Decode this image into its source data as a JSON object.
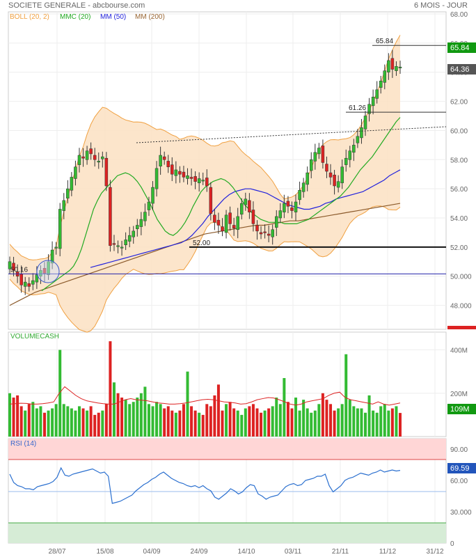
{
  "header": {
    "title": "SOCIETE GENERALE - abcbourse.com",
    "period": "6 MOIS - JOUR"
  },
  "legend": [
    {
      "label": "BOLL (20, 2)",
      "color": "#f0a040"
    },
    {
      "label": "MMC (20)",
      "color": "#22aa22"
    },
    {
      "label": "MM (50)",
      "color": "#2222dd"
    },
    {
      "label": "MM (200)",
      "color": "#996633"
    }
  ],
  "colors": {
    "up": "#33bb33",
    "down": "#dd2222",
    "boll_fill": "#fbe0c2",
    "boll_line": "#f0a040",
    "mmc20": "#22aa22",
    "mm50": "#2222dd",
    "mm200": "#8b5a2b",
    "volume_ma": "#dd2222",
    "rsi_line": "#2a6fcf"
  },
  "chart_data": [
    {
      "type": "candlestick",
      "title": "",
      "y_ticks": [
        "48.000",
        "50.000",
        "52.00",
        "54.00",
        "56.00",
        "58.00",
        "60.00",
        "62.00",
        "64.00",
        "66.00",
        "68.00"
      ],
      "ylim": [
        46.5,
        68
      ],
      "x_ticks": [
        "28/07",
        "15/08",
        "04/09",
        "24/09",
        "14/10",
        "03/11",
        "21/11",
        "11/12",
        "31/12"
      ],
      "price_labels": {
        "high": "65.84",
        "last": "64.36"
      },
      "annotations": [
        "65.84",
        "61.26",
        "52.00",
        "50.16"
      ],
      "horizontal_lines": [
        {
          "value": 65.84,
          "label": "65.84"
        },
        {
          "value": 61.26,
          "label": "61.26"
        },
        {
          "value": 52.0,
          "label": "52.00"
        },
        {
          "value": 50.16,
          "label": "50.16"
        }
      ],
      "trendline": {
        "from": [
          16,
          59.0
        ],
        "to": [
          98,
          60.3
        ]
      },
      "close": [
        51.0,
        50.4,
        50.0,
        49.4,
        49.6,
        49.3,
        49.7,
        50.1,
        50.4,
        50.2,
        51.0,
        51.8,
        52.0,
        54.6,
        55.2,
        56.0,
        56.8,
        57.5,
        58.3,
        58.1,
        58.6,
        58.4,
        58.0,
        57.9,
        58.2,
        56.2,
        52.1,
        52.2,
        52.1,
        52.0,
        52.5,
        52.8,
        53.1,
        53.5,
        53.9,
        54.4,
        55.1,
        56.1,
        57.4,
        58.3,
        58.0,
        57.5,
        57.0,
        57.3,
        57.0,
        56.8,
        56.9,
        56.7,
        56.5,
        56.7,
        56.6,
        56.2,
        54.3,
        53.7,
        53.5,
        53.1,
        54.2,
        53.6,
        53.3,
        54.1,
        55.0,
        55.3,
        54.4,
        53.6,
        53.1,
        52.9,
        53.0,
        52.8,
        53.2,
        54.1,
        54.5,
        55.0,
        54.8,
        54.5,
        55.1,
        55.9,
        56.4,
        57.1,
        58.0,
        58.5,
        58.8,
        57.8,
        57.2,
        56.8,
        56.2,
        56.5,
        57.5,
        58.1,
        58.6,
        59.0,
        59.6,
        60.2,
        61.0,
        61.8,
        62.3,
        62.8,
        63.4,
        64.1,
        64.8,
        64.2,
        64.4,
        64.36
      ],
      "mmc20": [
        49.0,
        49.2,
        49.4,
        49.6,
        49.8,
        50.0,
        50.2,
        50.4,
        50.7,
        51.2,
        51.9,
        52.8,
        53.7,
        54.6,
        55.2,
        55.7,
        56.0,
        56.3,
        56.6,
        56.9,
        57.0,
        57.1,
        57.0,
        56.8,
        56.5,
        56.1,
        55.6,
        55.1,
        54.5,
        53.9,
        53.5,
        53.1,
        52.9,
        52.8,
        53.0,
        53.3,
        53.7,
        54.2,
        54.8,
        55.3,
        55.8,
        56.1,
        56.3,
        56.5,
        56.6,
        56.7,
        56.6,
        56.4,
        56.1,
        55.7,
        55.3,
        54.9,
        54.6,
        54.3,
        54.1,
        53.9,
        53.8,
        53.7,
        53.7,
        53.7,
        53.7,
        53.6,
        53.6,
        53.6,
        53.6,
        53.7,
        53.8,
        53.9,
        54.1,
        54.3,
        54.5,
        54.7,
        54.9,
        55.1,
        55.3,
        55.5,
        55.8,
        56.1,
        56.5,
        56.9,
        57.3,
        57.6,
        57.9,
        58.2,
        58.6,
        59.0,
        59.4,
        59.8,
        60.2,
        60.6,
        60.9
      ],
      "mm50": [
        50.6,
        50.7,
        50.8,
        50.9,
        51.0,
        51.1,
        51.2,
        51.3,
        51.4,
        51.5,
        51.6,
        51.7,
        51.8,
        51.9,
        52.0,
        52.1,
        52.2,
        52.3,
        52.5,
        52.8,
        53.2,
        53.6,
        54.1,
        54.5,
        54.9,
        55.3,
        55.6,
        55.8,
        55.9,
        56.0,
        56.0,
        55.9,
        55.8,
        55.7,
        55.5,
        55.3,
        55.1,
        54.9,
        54.8,
        54.7,
        54.6,
        54.6,
        54.7,
        54.8,
        55.0,
        55.1,
        55.3,
        55.4,
        55.5,
        55.6,
        55.7,
        55.8,
        56.0,
        56.2,
        56.4,
        56.6,
        56.9,
        57.1,
        57.3
      ],
      "mm200": [
        48.0,
        48.3,
        48.6,
        48.9,
        49.1,
        49.3,
        49.5,
        49.7,
        49.9,
        50.1,
        50.3,
        50.5,
        50.7,
        50.9,
        51.1,
        51.3,
        51.5,
        51.7,
        51.9,
        52.1,
        52.3,
        52.5,
        52.7,
        52.9,
        53.0,
        53.1,
        53.2,
        53.3,
        53.4,
        53.5,
        53.5,
        53.6,
        53.7,
        53.8,
        53.8,
        53.9,
        54.0,
        54.1,
        54.2,
        54.3,
        54.4,
        54.5,
        54.6,
        54.7,
        54.8,
        54.9,
        55.0
      ]
    },
    {
      "type": "bar",
      "title": "VOLUMECASH",
      "y_ticks": [
        "200M",
        "400M"
      ],
      "ylim": [
        0,
        450
      ],
      "last_label": "109M",
      "values": [
        200,
        180,
        190,
        140,
        120,
        150,
        160,
        130,
        140,
        110,
        120,
        130,
        150,
        400,
        150,
        140,
        130,
        120,
        140,
        130,
        120,
        140,
        100,
        110,
        120,
        150,
        440,
        250,
        200,
        180,
        170,
        150,
        160,
        180,
        200,
        230,
        150,
        140,
        160,
        150,
        130,
        140,
        120,
        110,
        120,
        150,
        300,
        140,
        120,
        110,
        100,
        150,
        140,
        190,
        240,
        120,
        150,
        160,
        130,
        120,
        100,
        130,
        140,
        150,
        130,
        110,
        120,
        130,
        140,
        180,
        150,
        270,
        160,
        130,
        180,
        120,
        170,
        130,
        110,
        120,
        150,
        200,
        170,
        150,
        120,
        130,
        150,
        380,
        170,
        140,
        130,
        130,
        110,
        190,
        120,
        110,
        140,
        150,
        120,
        130,
        140,
        109
      ],
      "moving_average": [
        150,
        152,
        154,
        153,
        150,
        150,
        152,
        155,
        160,
        200,
        230,
        210,
        190,
        175,
        165,
        160,
        155,
        152,
        150,
        150,
        160,
        170,
        175,
        170,
        168,
        165,
        160,
        155,
        153,
        150,
        150,
        152,
        155,
        160,
        165,
        170,
        172,
        170,
        165,
        160,
        158,
        155,
        150,
        152,
        160,
        170,
        175,
        180,
        178,
        170,
        160,
        150,
        145,
        150,
        160,
        165,
        170,
        175,
        190,
        200,
        205,
        180,
        170,
        165,
        160,
        155,
        150,
        160,
        150,
        145,
        150,
        155
      ],
      "show_top": true
    },
    {
      "type": "line",
      "title": "RSI (14)",
      "y_ticks": [
        "0",
        "30.000",
        "60.00",
        "90.00"
      ],
      "ylim": [
        0,
        100
      ],
      "bands": [
        70,
        30
      ],
      "ref_line": 50,
      "last_label": "69.59",
      "values": [
        66,
        58,
        55,
        54,
        52,
        52,
        51,
        54,
        55,
        56,
        57,
        59,
        63,
        72,
        65,
        64,
        66,
        67,
        68,
        69,
        70,
        71,
        69,
        67,
        68,
        64,
        38,
        39,
        40,
        42,
        44,
        46,
        50,
        53,
        56,
        58,
        61,
        63,
        66,
        68,
        65,
        62,
        60,
        58,
        57,
        55,
        54,
        55,
        53,
        55,
        52,
        50,
        44,
        42,
        45,
        48,
        52,
        50,
        47,
        49,
        53,
        56,
        55,
        47,
        45,
        42,
        44,
        45,
        46,
        50,
        54,
        56,
        57,
        55,
        56,
        60,
        61,
        62,
        64,
        64,
        66,
        55,
        49,
        52,
        55,
        60,
        62,
        63,
        65,
        67,
        66,
        65,
        67,
        68,
        70,
        68,
        69,
        70,
        69,
        69.59
      ]
    }
  ]
}
